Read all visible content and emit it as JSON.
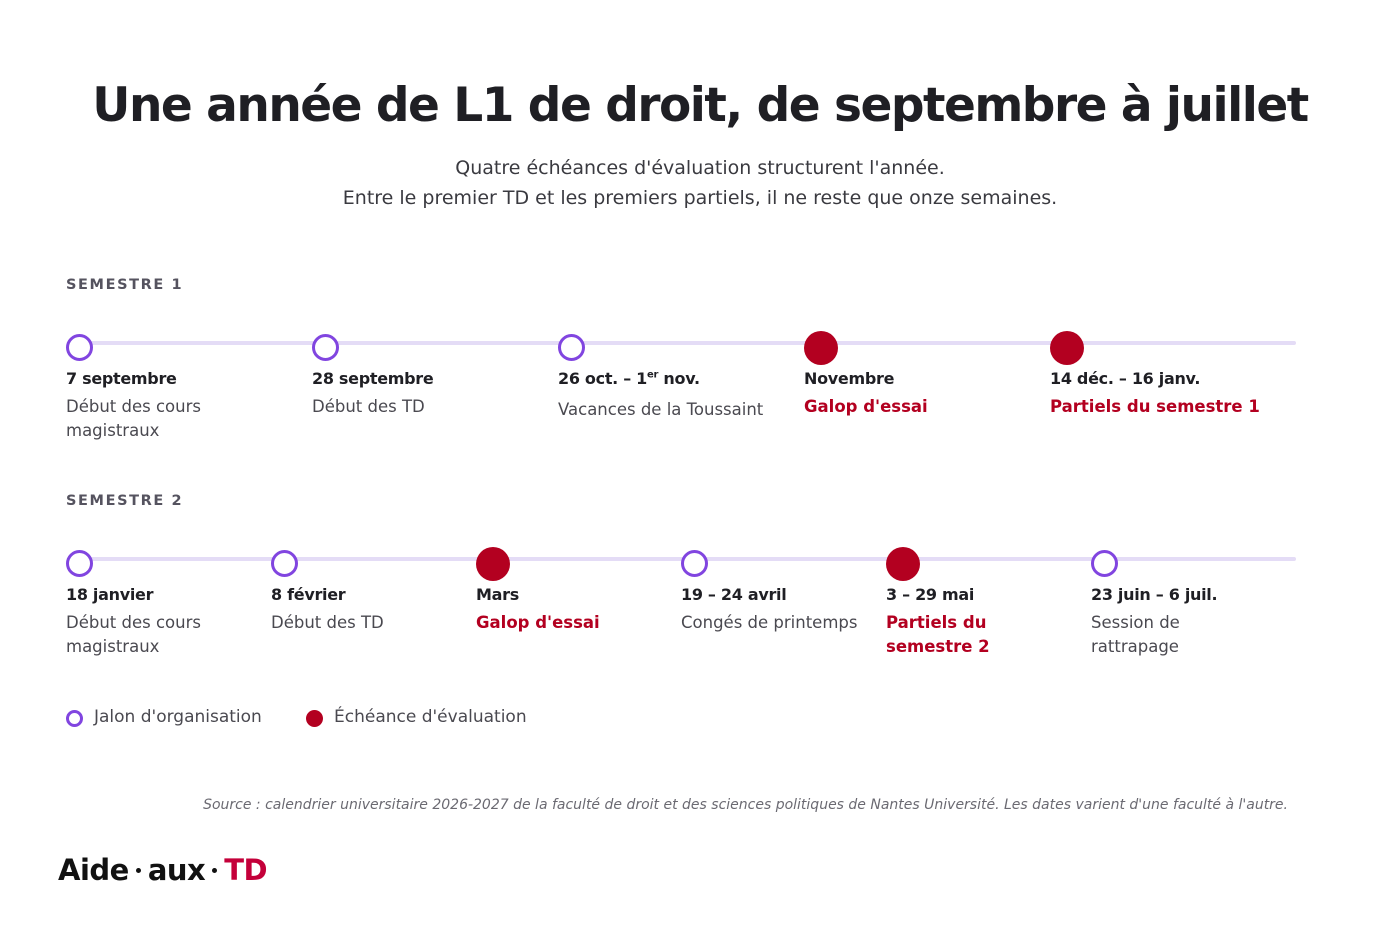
{
  "title": "Une année de L1 de droit, de septembre à juillet",
  "subtitle_line1": "Quatre échéances d'évaluation structurent l'année.",
  "subtitle_line2": "Entre le premier TD et les premiers partiels, il ne reste que onze semaines.",
  "semestre1": {
    "label": "SEMESTRE 1",
    "milestones": [
      {
        "date": "7 septembre",
        "desc": "Début des cours magistraux",
        "kind": "organisation"
      },
      {
        "date": "28 septembre",
        "desc": "Début des TD",
        "kind": "organisation"
      },
      {
        "date_main": "26 oct. – 1",
        "date_sup": "er",
        "date_tail": " nov.",
        "desc": "Vacances de la Toussaint",
        "kind": "organisation"
      },
      {
        "date": "Novembre",
        "desc": "Galop d'essai",
        "kind": "evaluation"
      },
      {
        "date": "14 déc. – 16 janv.",
        "desc": "Partiels du semestre 1",
        "kind": "evaluation"
      }
    ]
  },
  "semestre2": {
    "label": "SEMESTRE 2",
    "milestones": [
      {
        "date": "18 janvier",
        "desc": "Début des cours magistraux",
        "kind": "organisation"
      },
      {
        "date": "8 février",
        "desc": "Début des TD",
        "kind": "organisation"
      },
      {
        "date": "Mars",
        "desc": "Galop d'essai",
        "kind": "evaluation"
      },
      {
        "date": "19 – 24 avril",
        "desc": "Congés de printemps",
        "kind": "organisation"
      },
      {
        "date": "3 – 29 mai",
        "desc": "Partiels du semestre 2",
        "kind": "evaluation"
      },
      {
        "date": "23 juin – 6 juil.",
        "desc": "Session de rattrapage",
        "kind": "organisation"
      }
    ]
  },
  "legend": {
    "organisation": "Jalon d'organisation",
    "evaluation": "Échéance d'évaluation"
  },
  "source": "Source : calendrier universitaire 2026-2027 de la faculté de droit et des sciences politiques de Nantes Université. Les dates varient d'une faculté à l'autre.",
  "logo": {
    "part1": "Aide",
    "part2": "aux",
    "part3": "TD"
  },
  "colors": {
    "organisation": "#8145e0",
    "evaluation": "#b30020",
    "track": "#e4dcf6"
  }
}
